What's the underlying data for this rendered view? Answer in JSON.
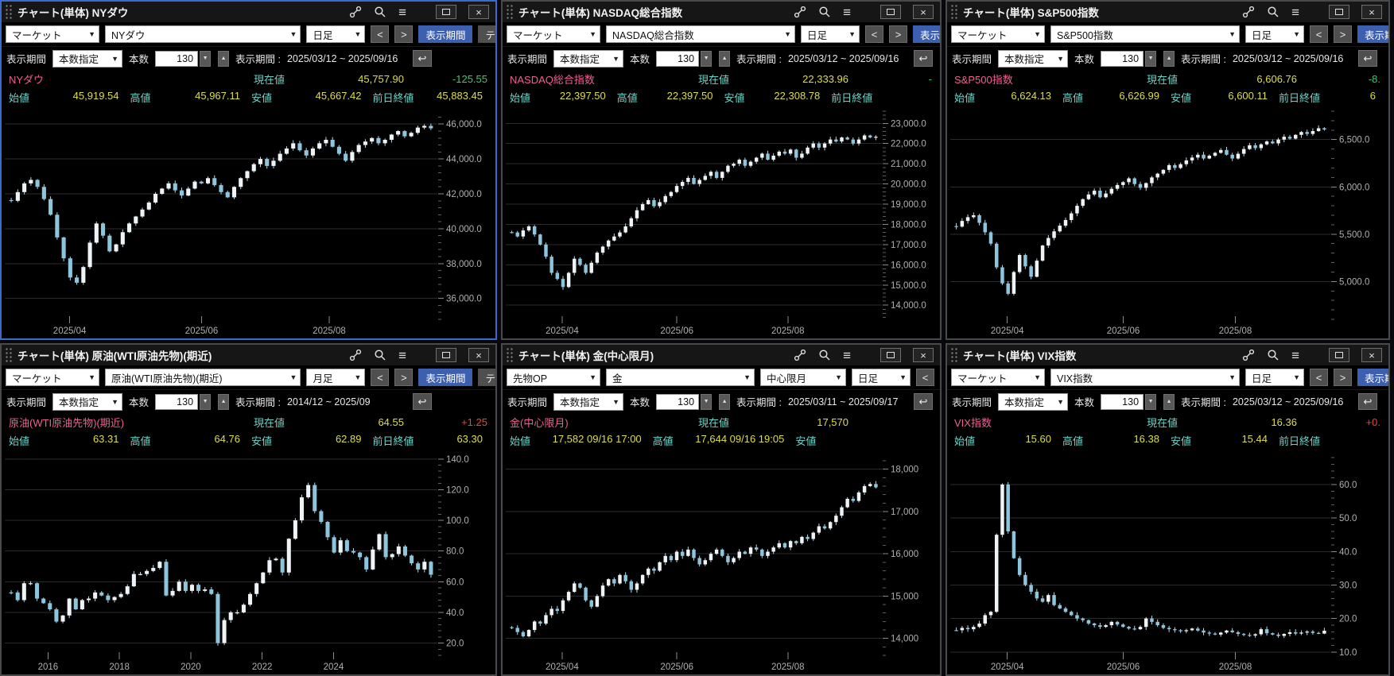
{
  "app": {
    "background": "#07080c",
    "accent_blue": "#3c5fb0",
    "active_border": "#3e6ad0",
    "name_pink": "#ee6095",
    "label_teal": "#6cd2c8",
    "value_yellow": "#dede45",
    "up_red": "#e5473c",
    "down_green": "#46c46e"
  },
  "titlebar_icons": [
    "link-icon",
    "search-icon",
    "menu-icon",
    "maximize-icon",
    "close-icon"
  ],
  "glyphs": {
    "dropdown_arrow": "▼",
    "prev": "<",
    "next": ">",
    "spin_down": "▼",
    "spin_up": "▲",
    "reset": "↩",
    "close": "×"
  },
  "panels": [
    {
      "id": "nydow",
      "active": true,
      "title": "チャート(単体) NYダウ",
      "toolbar": {
        "dropdowns": [
          {
            "role": "market",
            "label": "マーケット"
          },
          {
            "role": "instrument",
            "label": "NYダウ"
          },
          {
            "role": "timeframe",
            "label": "日足"
          }
        ],
        "period_button": "表示期間",
        "technical_button": "テクニ"
      },
      "period": {
        "label": "表示期間",
        "mode": "本数指定",
        "count_label": "本数",
        "count": "130",
        "range_label": "表示期間 :",
        "range": "2025/03/12 ~ 2025/09/16"
      },
      "quote": {
        "name": "NYダウ",
        "current_label": "現在値",
        "current": "45,757.90",
        "change": "-125.55",
        "direction": "down",
        "ohlc": [
          {
            "label": "始値",
            "value": "45,919.54"
          },
          {
            "label": "高値",
            "value": "45,967.11"
          },
          {
            "label": "安値",
            "value": "45,667.42"
          },
          {
            "label": "前日終値",
            "value": "45,883.45"
          }
        ]
      }
    },
    {
      "id": "nasdaq",
      "active": false,
      "title": "チャート(単体) NASDAQ総合指数",
      "toolbar": {
        "dropdowns": [
          {
            "role": "market",
            "label": "マーケット"
          },
          {
            "role": "instrument",
            "label": "NASDAQ総合指数"
          },
          {
            "role": "timeframe",
            "label": "日足"
          }
        ],
        "period_button": "表示期間",
        "technical_button": ""
      },
      "period": {
        "label": "表示期間",
        "mode": "本数指定",
        "count_label": "本数",
        "count": "130",
        "range_label": "表示期間 :",
        "range": "2025/03/12 ~ 2025/09/16"
      },
      "quote": {
        "name": "NASDAQ総合指数",
        "current_label": "現在値",
        "current": "22,333.96",
        "change": "-",
        "direction": "down",
        "ohlc": [
          {
            "label": "始値",
            "value": "22,397.50"
          },
          {
            "label": "高値",
            "value": "22,397.50"
          },
          {
            "label": "安値",
            "value": "22,308.78"
          },
          {
            "label": "前日終値",
            "value": ""
          }
        ]
      }
    },
    {
      "id": "sp500",
      "active": false,
      "title": "チャート(単体) S&P500指数",
      "toolbar": {
        "dropdowns": [
          {
            "role": "market",
            "label": "マーケット"
          },
          {
            "role": "instrument",
            "label": "S&P500指数"
          },
          {
            "role": "timeframe",
            "label": "日足"
          }
        ],
        "period_button": "表示期間",
        "technical_button": ""
      },
      "period": {
        "label": "表示期間",
        "mode": "本数指定",
        "count_label": "本数",
        "count": "130",
        "range_label": "表示期間 :",
        "range": "2025/03/12 ~ 2025/09/16"
      },
      "quote": {
        "name": "S&P500指数",
        "current_label": "現在値",
        "current": "6,606.76",
        "change": "-8.",
        "direction": "down",
        "ohlc": [
          {
            "label": "始値",
            "value": "6,624.13"
          },
          {
            "label": "高値",
            "value": "6,626.99"
          },
          {
            "label": "安値",
            "value": "6,600.11"
          },
          {
            "label": "前日終値",
            "value": "6"
          }
        ]
      }
    },
    {
      "id": "wti",
      "active": false,
      "title": "チャート(単体) 原油(WTI原油先物)(期近)",
      "toolbar": {
        "dropdowns": [
          {
            "role": "market",
            "label": "マーケット"
          },
          {
            "role": "instrument",
            "label": "原油(WTI原油先物)(期近)"
          },
          {
            "role": "timeframe",
            "label": "月足"
          }
        ],
        "period_button": "表示期間",
        "technical_button": "テクニ"
      },
      "period": {
        "label": "表示期間",
        "mode": "本数指定",
        "count_label": "本数",
        "count": "130",
        "range_label": "表示期間 :",
        "range": "2014/12 ~ 2025/09"
      },
      "quote": {
        "name": "原油(WTI原油先物)(期近)",
        "current_label": "現在値",
        "current": "64.55",
        "change": "+1.25",
        "direction": "up",
        "ohlc": [
          {
            "label": "始値",
            "value": "63.31"
          },
          {
            "label": "高値",
            "value": "64.76"
          },
          {
            "label": "安値",
            "value": "62.89"
          },
          {
            "label": "前日終値",
            "value": "63.30"
          }
        ]
      }
    },
    {
      "id": "gold",
      "active": false,
      "title": "チャート(単体) 金(中心限月)",
      "toolbar": {
        "dropdowns": [
          {
            "role": "market",
            "label": "先物OP"
          },
          {
            "role": "instrument",
            "label": "金"
          },
          {
            "role": "contract",
            "label": "中心限月"
          },
          {
            "role": "timeframe",
            "label": "日足"
          }
        ],
        "period_button": "",
        "technical_button": ""
      },
      "period": {
        "label": "表示期間",
        "mode": "本数指定",
        "count_label": "本数",
        "count": "130",
        "range_label": "表示期間 :",
        "range": "2025/03/11 ~ 2025/09/17"
      },
      "quote": {
        "name": "金(中心限月)",
        "current_label": "現在値",
        "current": "17,570",
        "change": "",
        "direction": "flat",
        "ohlc": [
          {
            "label": "始値",
            "value": "17,582 09/16 17:00"
          },
          {
            "label": "高値",
            "value": "17,644 09/16 19:05"
          },
          {
            "label": "安値",
            "value": ""
          }
        ]
      }
    },
    {
      "id": "vix",
      "active": false,
      "title": "チャート(単体) VIX指数",
      "toolbar": {
        "dropdowns": [
          {
            "role": "market",
            "label": "マーケット"
          },
          {
            "role": "instrument",
            "label": "VIX指数"
          },
          {
            "role": "timeframe",
            "label": "日足"
          }
        ],
        "period_button": "表示期間",
        "technical_button": ""
      },
      "period": {
        "label": "表示期間",
        "mode": "本数指定",
        "count_label": "本数",
        "count": "130",
        "range_label": "表示期間 :",
        "range": "2025/03/12 ~ 2025/09/16"
      },
      "quote": {
        "name": "VIX指数",
        "current_label": "現在値",
        "current": "16.36",
        "change": "+0.",
        "direction": "up",
        "ohlc": [
          {
            "label": "始値",
            "value": "15.60"
          },
          {
            "label": "高値",
            "value": "16.38"
          },
          {
            "label": "安値",
            "value": "15.44"
          },
          {
            "label": "前日終値",
            "value": ""
          }
        ]
      }
    }
  ],
  "chart_data": [
    {
      "type": "candlestick",
      "title": "NYダウ 日足 2025/03/12-2025/09/16",
      "ylim": [
        34800,
        46740
      ],
      "grid": true,
      "yticks": [
        {
          "v": 46000,
          "label": "46,000.0"
        },
        {
          "v": 44000,
          "label": "44,000.0"
        },
        {
          "v": 42000,
          "label": "42,000.0"
        },
        {
          "v": 40000,
          "label": "40,000.0"
        },
        {
          "v": 38000,
          "label": "38,000.0"
        },
        {
          "v": 36000,
          "label": "36,000.0"
        }
      ],
      "xticks": [
        {
          "pos": 0.15,
          "label": "2025/04"
        },
        {
          "pos": 0.455,
          "label": "2025/06"
        },
        {
          "pos": 0.75,
          "label": "2025/08"
        }
      ],
      "closes": [
        41600,
        42100,
        42600,
        42800,
        42400,
        41700,
        40800,
        39500,
        38300,
        37200,
        36900,
        37800,
        39200,
        40300,
        39600,
        38700,
        39100,
        39800,
        40300,
        40700,
        41100,
        41500,
        42000,
        42300,
        42600,
        42200,
        41900,
        42300,
        42700,
        42600,
        42900,
        42500,
        42100,
        41800,
        42400,
        42900,
        43300,
        43700,
        44000,
        43600,
        43900,
        44300,
        44600,
        44900,
        44500,
        44200,
        44600,
        44900,
        45100,
        44700,
        44300,
        43900,
        44400,
        44800,
        45000,
        45200,
        44900,
        45100,
        45400,
        45600,
        45300,
        45500,
        45800,
        45900,
        45758
      ]
    },
    {
      "type": "candlestick",
      "title": "NASDAQ総合指数 日足 2025/03/12-2025/09/16",
      "ylim": [
        13300,
        23600
      ],
      "grid": true,
      "yticks": [
        {
          "v": 23000,
          "label": "23,000.0"
        },
        {
          "v": 22000,
          "label": "22,000.0"
        },
        {
          "v": 21000,
          "label": "21,000.0"
        },
        {
          "v": 20000,
          "label": "20,000.0"
        },
        {
          "v": 19000,
          "label": "19,000.0"
        },
        {
          "v": 18000,
          "label": "18,000.0"
        },
        {
          "v": 17000,
          "label": "17,000.0"
        },
        {
          "v": 16000,
          "label": "16,000.0"
        },
        {
          "v": 15000,
          "label": "15,000.0"
        },
        {
          "v": 14000,
          "label": "14,000.0"
        }
      ],
      "xticks": [
        {
          "pos": 0.15,
          "label": "2025/04"
        },
        {
          "pos": 0.455,
          "label": "2025/06"
        },
        {
          "pos": 0.75,
          "label": "2025/08"
        }
      ],
      "closes": [
        17600,
        17400,
        17700,
        17900,
        17500,
        17000,
        16400,
        15600,
        15300,
        14900,
        15600,
        16300,
        16000,
        15600,
        16100,
        16600,
        16900,
        17200,
        17400,
        17600,
        17900,
        18300,
        18700,
        19000,
        19200,
        18900,
        19100,
        19400,
        19600,
        19900,
        20100,
        20300,
        20000,
        20200,
        20400,
        20600,
        20300,
        20600,
        20900,
        21000,
        21200,
        20900,
        21100,
        21300,
        21500,
        21200,
        21400,
        21600,
        21500,
        21700,
        21300,
        21500,
        21800,
        22000,
        21800,
        22000,
        22200,
        22100,
        22300,
        22200,
        22000,
        22200,
        22400,
        22300,
        22334
      ]
    },
    {
      "type": "candlestick",
      "title": "S&P500指数 日足 2025/03/12-2025/09/16",
      "ylim": [
        4600,
        6800
      ],
      "grid": true,
      "yticks": [
        {
          "v": 6500,
          "label": "6,500.0"
        },
        {
          "v": 6000,
          "label": "6,000.0"
        },
        {
          "v": 5500,
          "label": "5,500.0"
        },
        {
          "v": 5000,
          "label": "5,000.0"
        }
      ],
      "xticks": [
        {
          "pos": 0.15,
          "label": "2025/04"
        },
        {
          "pos": 0.455,
          "label": "2025/06"
        },
        {
          "pos": 0.75,
          "label": "2025/08"
        }
      ],
      "closes": [
        5580,
        5640,
        5680,
        5700,
        5620,
        5520,
        5400,
        5150,
        4980,
        4870,
        5100,
        5280,
        5160,
        5050,
        5220,
        5380,
        5460,
        5530,
        5590,
        5650,
        5720,
        5800,
        5870,
        5920,
        5960,
        5890,
        5930,
        5980,
        6020,
        6050,
        6090,
        6030,
        5990,
        6040,
        6100,
        6140,
        6180,
        6230,
        6200,
        6240,
        6280,
        6310,
        6340,
        6300,
        6330,
        6360,
        6390,
        6340,
        6300,
        6350,
        6400,
        6440,
        6410,
        6450,
        6480,
        6460,
        6500,
        6530,
        6510,
        6550,
        6580,
        6560,
        6590,
        6620,
        6607
      ]
    },
    {
      "type": "candlestick",
      "title": "原油(WTI原油先物)(期近) 月足 2014/12-2025/09",
      "ylim": [
        12,
        143
      ],
      "grid": true,
      "yticks": [
        {
          "v": 140,
          "label": "140.0"
        },
        {
          "v": 120,
          "label": "120.0"
        },
        {
          "v": 100,
          "label": "100.0"
        },
        {
          "v": 80,
          "label": "80.0"
        },
        {
          "v": 60,
          "label": "60.0"
        },
        {
          "v": 40,
          "label": "40.0"
        },
        {
          "v": 20,
          "label": "20.0"
        }
      ],
      "xticks": [
        {
          "pos": 0.1,
          "label": "2016"
        },
        {
          "pos": 0.265,
          "label": "2018"
        },
        {
          "pos": 0.43,
          "label": "2020"
        },
        {
          "pos": 0.595,
          "label": "2022"
        },
        {
          "pos": 0.76,
          "label": "2024"
        }
      ],
      "closes": [
        53,
        48,
        59,
        59,
        49,
        46,
        42,
        34,
        38,
        49,
        42,
        48,
        49,
        53,
        51,
        48,
        50,
        52,
        57,
        65,
        65,
        67,
        69,
        73,
        51,
        54,
        60,
        54,
        58,
        54,
        55,
        52,
        20,
        35,
        40,
        40,
        45,
        52,
        59,
        66,
        74,
        75,
        66,
        88,
        100,
        115,
        123,
        106,
        99,
        89,
        79,
        87,
        80,
        79,
        76,
        68,
        81,
        91,
        76,
        78,
        83,
        77,
        72,
        68,
        73,
        64.55
      ]
    },
    {
      "type": "candlestick",
      "title": "金(中心限月) 日足 2025/03/11-2025/09/17",
      "ylim": [
        13600,
        18350
      ],
      "grid": true,
      "yticks": [
        {
          "v": 18000,
          "label": "18,000"
        },
        {
          "v": 17000,
          "label": "17,000"
        },
        {
          "v": 16000,
          "label": "16,000"
        },
        {
          "v": 15000,
          "label": "15,000"
        },
        {
          "v": 14000,
          "label": "14,000"
        }
      ],
      "xticks": [
        {
          "pos": 0.15,
          "label": "2025/04"
        },
        {
          "pos": 0.455,
          "label": "2025/06"
        },
        {
          "pos": 0.75,
          "label": "2025/08"
        }
      ],
      "closes": [
        14250,
        14150,
        14050,
        14200,
        14400,
        14350,
        14550,
        14700,
        14650,
        14900,
        15100,
        15300,
        15200,
        14900,
        14750,
        15000,
        15250,
        15400,
        15300,
        15500,
        15350,
        15150,
        15300,
        15500,
        15650,
        15600,
        15800,
        15950,
        15850,
        16050,
        15950,
        16100,
        15900,
        15750,
        15850,
        16000,
        16100,
        15950,
        15800,
        15900,
        16050,
        16000,
        16150,
        16100,
        15950,
        16050,
        16150,
        16250,
        16150,
        16300,
        16250,
        16400,
        16350,
        16500,
        16650,
        16600,
        16750,
        16900,
        17100,
        17300,
        17250,
        17450,
        17600,
        17650,
        17570
      ]
    },
    {
      "type": "candlestick",
      "title": "VIX指数 日足 2025/03/12-2025/09/16",
      "ylim": [
        9,
        69
      ],
      "grid": true,
      "yticks": [
        {
          "v": 60,
          "label": "60.0"
        },
        {
          "v": 50,
          "label": "50.0"
        },
        {
          "v": 40,
          "label": "40.0"
        },
        {
          "v": 30,
          "label": "30.0"
        },
        {
          "v": 20,
          "label": "20.0"
        },
        {
          "v": 10,
          "label": "10.0"
        }
      ],
      "xticks": [
        {
          "pos": 0.15,
          "label": "2025/04"
        },
        {
          "pos": 0.455,
          "label": "2025/06"
        },
        {
          "pos": 0.75,
          "label": "2025/08"
        }
      ],
      "closes": [
        16.5,
        17.2,
        16.8,
        17.5,
        18.5,
        21,
        22,
        45,
        60,
        46,
        38,
        33,
        30,
        28,
        26,
        25,
        27,
        24,
        23,
        22,
        21,
        20,
        19.5,
        18.5,
        18,
        17.5,
        18,
        19,
        18.2,
        17.5,
        17,
        16.8,
        17.5,
        20,
        19,
        18,
        17.2,
        16.8,
        16.5,
        16.2,
        16.5,
        17,
        16.4,
        15.8,
        15.5,
        15.2,
        15.8,
        16.4,
        15.9,
        15.4,
        15.1,
        14.9,
        15.3,
        16.8,
        15.6,
        15.2,
        14.8,
        15.4,
        15.9,
        15.5,
        15.8,
        16.1,
        15.7,
        15.5,
        16.36
      ]
    }
  ]
}
